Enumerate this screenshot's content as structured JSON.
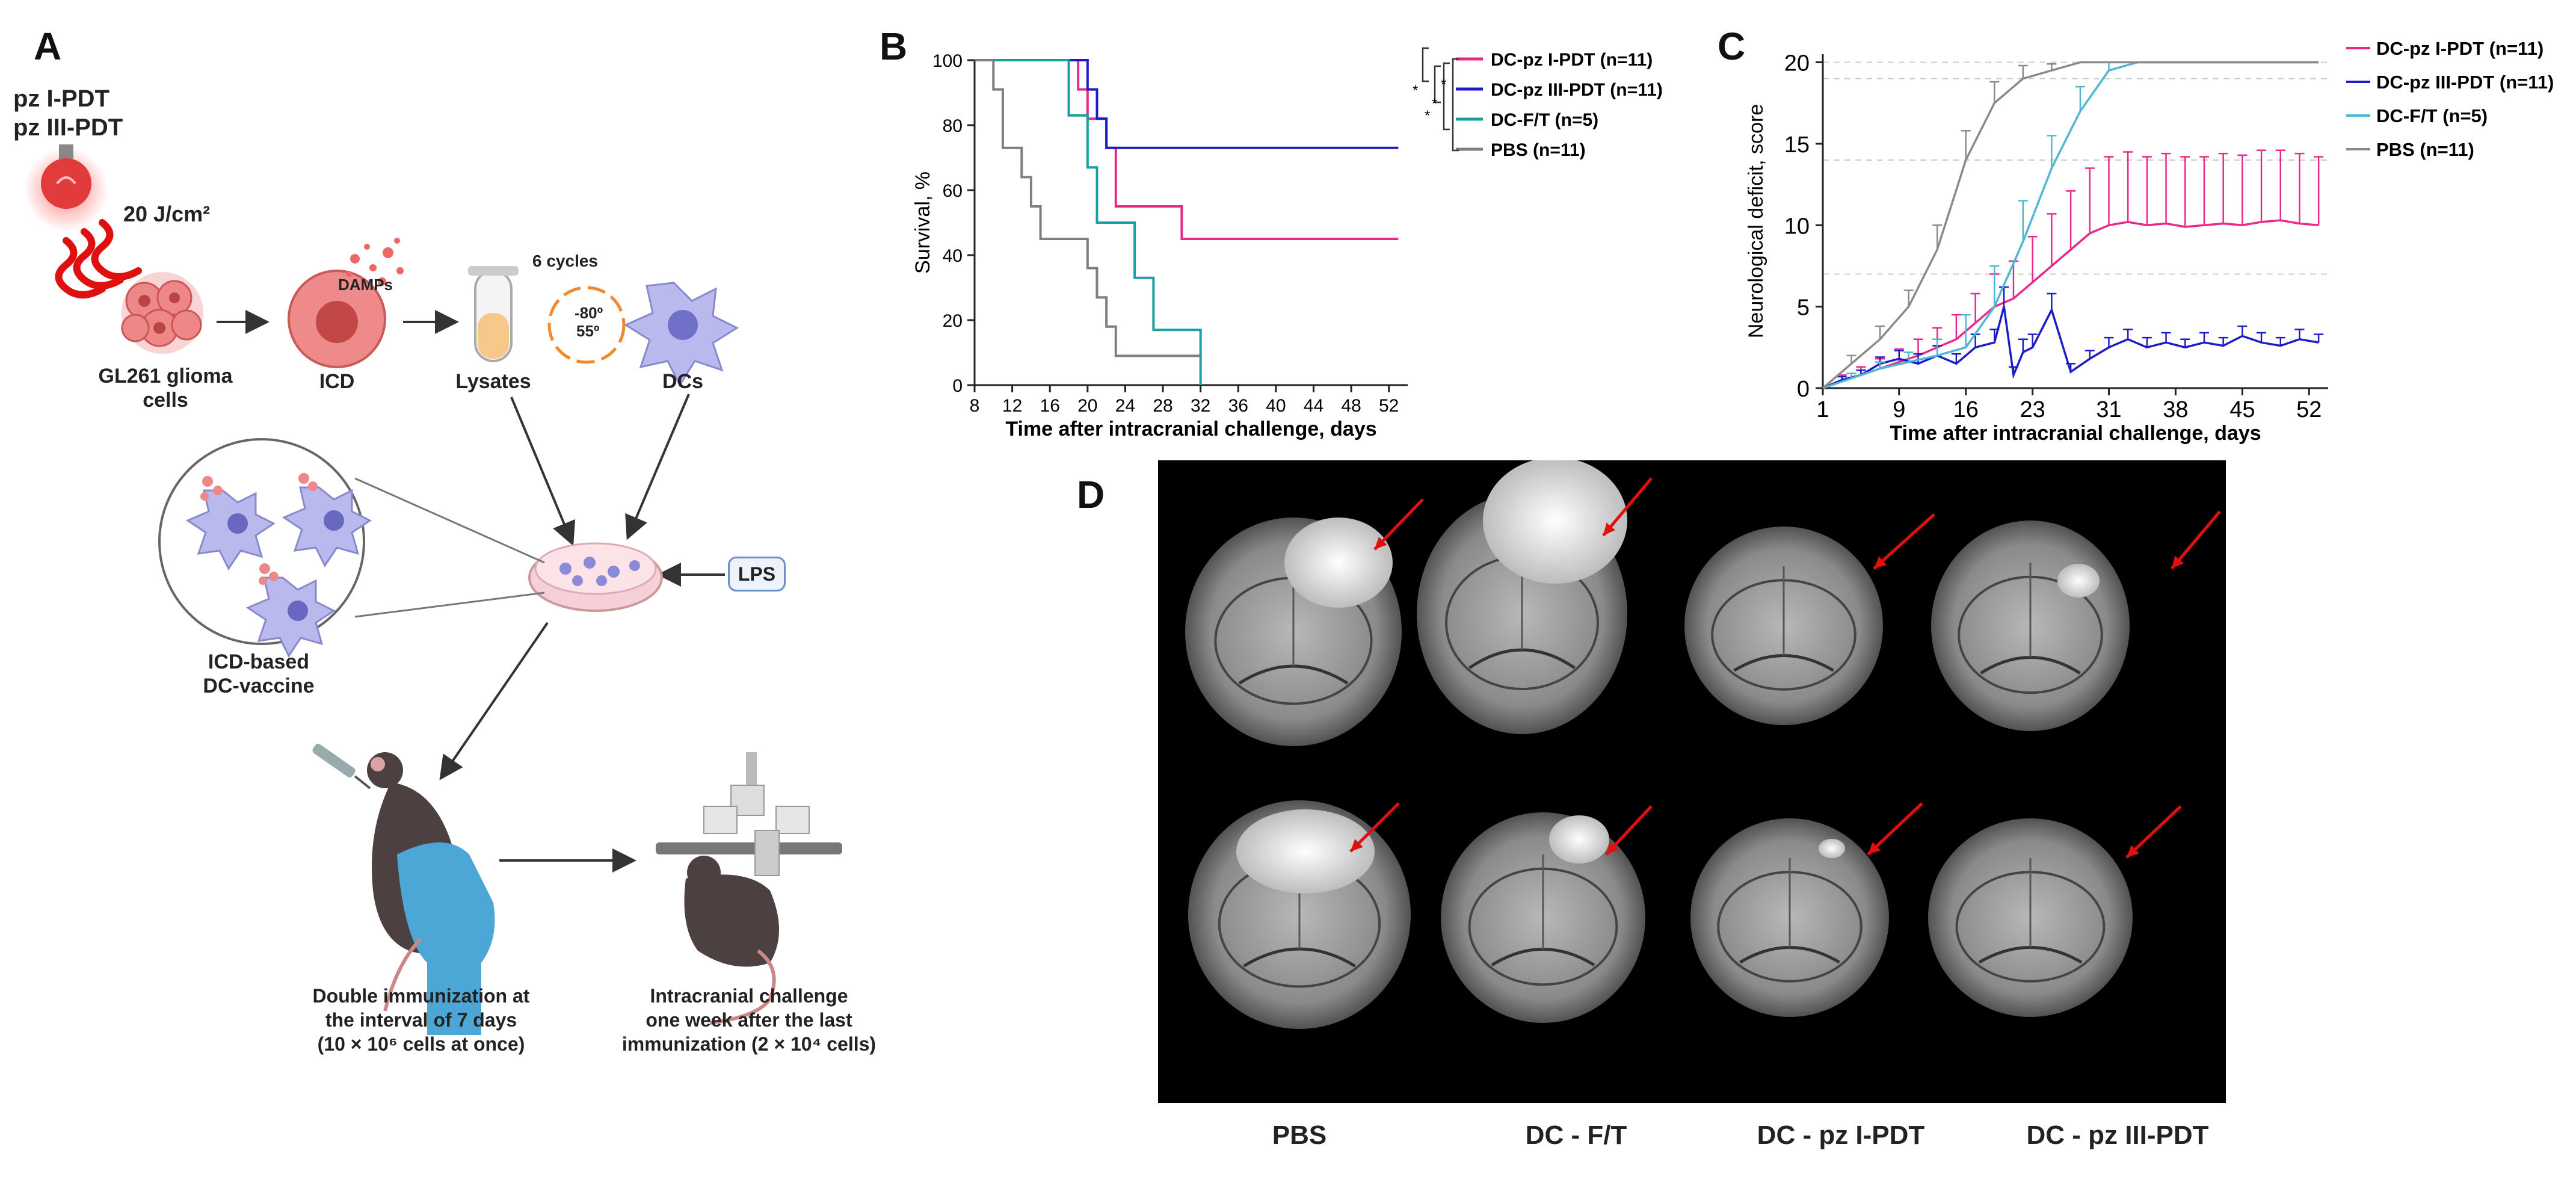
{
  "panels": {
    "a": "A",
    "b": "B",
    "c": "C",
    "d": "D"
  },
  "schematic": {
    "pdt_line1": "pz I-PDT",
    "pdt_line2": "pz III-PDT",
    "dose": "20 J/cm²",
    "damps": "DAMPs",
    "cycles": "6 cycles",
    "temp_low": "-80º",
    "temp_high": "55º",
    "glioma_line1": "GL261 glioma",
    "glioma_line2": "cells",
    "icd": "ICD",
    "lysates": "Lysates",
    "dcs": "DCs",
    "lps": "LPS",
    "vaccine_line1": "ICD-based",
    "vaccine_line2": "DC-vaccine",
    "immun_line1": "Double immunization at",
    "immun_line2": "the interval of 7 days",
    "immun_line3": "(10 × 10⁶ cells at once)",
    "challenge_line1": "Intracranial challenge",
    "challenge_line2": "one week after the last",
    "challenge_line3": "immunization (2 × 10⁴ cells)"
  },
  "colors": {
    "pz1": "#e8298a",
    "pz3": "#1c1cc8",
    "ft": "#1aa0a0",
    "pbs": "#7f7f7f",
    "arrow": "#e01010",
    "cells": "#f2a6a6",
    "dc": "#a9a9e6"
  },
  "survival_chart": {
    "chart_data": {
      "type": "line",
      "xlabel": "Time after intracranial challenge, days",
      "ylabel": "Survival, %",
      "xlim": [
        8,
        54
      ],
      "ylim": [
        0,
        100
      ],
      "xticks": [
        8,
        12,
        16,
        20,
        24,
        28,
        32,
        36,
        40,
        44,
        48,
        52
      ],
      "yticks": [
        0,
        20,
        40,
        60,
        80,
        100
      ],
      "significance": "*",
      "series": [
        {
          "name": "DC-pz I-PDT (n=11)",
          "color": "#e8298a",
          "x": [
            8,
            19,
            20,
            22,
            23,
            30,
            53
          ],
          "y": [
            100,
            91,
            82,
            73,
            55,
            45,
            45
          ]
        },
        {
          "name": "DC-pz III-PDT (n=11)",
          "color": "#1c1cc8",
          "x": [
            8,
            20,
            21,
            22,
            53
          ],
          "y": [
            100,
            91,
            82,
            73,
            73
          ]
        },
        {
          "name": "DC-F/T (n=5)",
          "color": "#1aa0a0",
          "x": [
            8,
            18,
            20,
            21,
            25,
            27,
            32
          ],
          "y": [
            100,
            83,
            67,
            50,
            33,
            17,
            0
          ]
        },
        {
          "name": "PBS (n=11)",
          "color": "#7f7f7f",
          "x": [
            8,
            10,
            11,
            13,
            14,
            15,
            20,
            21,
            22,
            23,
            32
          ],
          "y": [
            100,
            91,
            73,
            64,
            55,
            45,
            36,
            27,
            18,
            9,
            9
          ]
        }
      ]
    }
  },
  "deficit_chart": {
    "chart_data": {
      "type": "line",
      "xlabel": "Time after intracranial challenge, days",
      "ylabel": "Neurological deficit, score",
      "xlim": [
        1,
        54
      ],
      "ylim": [
        0,
        20.5
      ],
      "xticks": [
        1,
        9,
        16,
        23,
        31,
        38,
        45,
        52
      ],
      "yticks": [
        0,
        5,
        10,
        15,
        20
      ],
      "series": [
        {
          "name": "DC-pz I-PDT (n=11)",
          "color": "#e8298a",
          "x": [
            1,
            3,
            5,
            7,
            9,
            11,
            13,
            15,
            17,
            19,
            21,
            23,
            25,
            27,
            29,
            31,
            33,
            35,
            37,
            39,
            41,
            43,
            45,
            47,
            49,
            51,
            53
          ],
          "y": [
            0,
            0.5,
            0.8,
            1.2,
            1.6,
            2.0,
            2.5,
            3.0,
            4.0,
            5.0,
            5.5,
            6.5,
            7.5,
            8.5,
            9.5,
            10.0,
            10.2,
            10.0,
            10.1,
            9.9,
            10.0,
            10.1,
            10.0,
            10.2,
            10.3,
            10.1,
            10.0
          ],
          "err": [
            0,
            0.3,
            0.5,
            0.6,
            0.8,
            1.0,
            1.2,
            1.5,
            1.8,
            2.0,
            2.3,
            2.8,
            3.2,
            3.6,
            4.0,
            4.2,
            4.3,
            4.2,
            4.3,
            4.3,
            4.2,
            4.3,
            4.3,
            4.4,
            4.3,
            4.3,
            4.2
          ]
        },
        {
          "name": "DC-pz III-PDT (n=11)",
          "color": "#1c1cc8",
          "x": [
            1,
            3,
            5,
            7,
            9,
            11,
            13,
            15,
            17,
            19,
            20,
            21,
            22,
            23,
            25,
            27,
            29,
            31,
            33,
            35,
            37,
            39,
            41,
            43,
            45,
            47,
            49,
            51,
            53
          ],
          "y": [
            0,
            0.5,
            0.8,
            1.5,
            1.8,
            1.5,
            2.0,
            1.5,
            2.5,
            2.8,
            5.0,
            0.8,
            2.2,
            2.5,
            4.8,
            1.0,
            1.8,
            2.5,
            3.0,
            2.5,
            2.8,
            2.5,
            2.8,
            2.6,
            3.2,
            2.8,
            2.6,
            3.0,
            2.8
          ],
          "err": [
            0,
            0.2,
            0.3,
            0.4,
            0.5,
            0.6,
            0.6,
            0.6,
            0.8,
            0.8,
            1.2,
            0.5,
            0.8,
            0.8,
            1.0,
            0.5,
            0.5,
            0.6,
            0.6,
            0.6,
            0.6,
            0.5,
            0.6,
            0.5,
            0.6,
            0.6,
            0.5,
            0.6,
            0.5
          ]
        },
        {
          "name": "DC-F/T (n=5)",
          "color": "#4fb6d6",
          "x": [
            1,
            4,
            7,
            10,
            13,
            16,
            19,
            22,
            25,
            28,
            31,
            34,
            53
          ],
          "y": [
            0,
            0.6,
            1.2,
            1.6,
            2.0,
            2.5,
            5.0,
            9.0,
            13.5,
            17.0,
            19.5,
            20.0,
            20.0
          ],
          "err": [
            0,
            0.3,
            0.4,
            0.6,
            1.0,
            2.0,
            2.5,
            2.5,
            2.0,
            1.5,
            0.5,
            0,
            0
          ]
        },
        {
          "name": "PBS (n=11)",
          "color": "#8a8a8a",
          "x": [
            1,
            4,
            7,
            10,
            13,
            16,
            19,
            22,
            25,
            28,
            31,
            53
          ],
          "y": [
            0,
            1.5,
            3.0,
            5.0,
            8.5,
            14.0,
            17.5,
            19.0,
            19.5,
            20.0,
            20.0,
            20.0
          ],
          "err": [
            0,
            0.5,
            0.8,
            1.0,
            1.5,
            1.8,
            1.3,
            0.8,
            0.4,
            0,
            0,
            0
          ]
        }
      ]
    }
  },
  "mri": {
    "labels": [
      "PBS",
      "DC - F/T",
      "DC - pz I-PDT",
      "DC - pz III-PDT"
    ]
  }
}
